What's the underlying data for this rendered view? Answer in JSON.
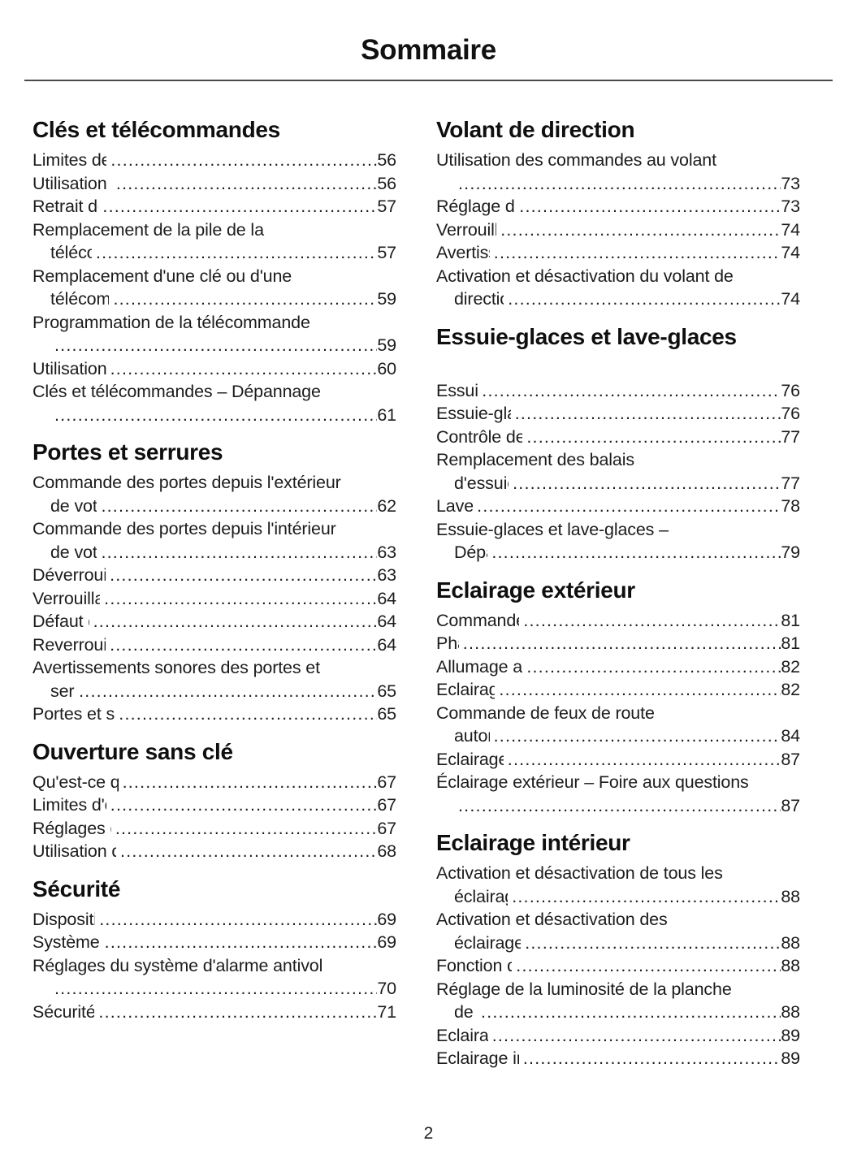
{
  "page": {
    "title": "Sommaire",
    "page_number": "2"
  },
  "columns": [
    {
      "sections": [
        {
          "title": "Clés et télécommandes",
          "entries": [
            {
              "lines": [
                "Limites de la télécommande"
              ],
              "page": "56"
            },
            {
              "lines": [
                "Utilisation de la télécommande"
              ],
              "page": "56"
            },
            {
              "lines": [
                "Retrait de la lame de clé"
              ],
              "page": "57"
            },
            {
              "lines": [
                "Remplacement de la pile de la",
                "télécommande"
              ],
              "page": "57"
            },
            {
              "lines": [
                "Remplacement d'une clé ou d'une",
                "télécommande perdue"
              ],
              "page": "59"
            },
            {
              "lines": [
                "Programmation de la télécommande",
                ""
              ],
              "page": "59"
            },
            {
              "lines": [
                "Utilisation du mode voiturier"
              ],
              "page": "60"
            },
            {
              "lines": [
                "Clés et télécommandes – Dépannage",
                ""
              ],
              "page": "61"
            }
          ]
        },
        {
          "title": "Portes et serrures",
          "entries": [
            {
              "lines": [
                "Commande des portes depuis l'extérieur",
                "de votre véhicule"
              ],
              "page": "62"
            },
            {
              "lines": [
                "Commande des portes depuis l'intérieur",
                "de votre véhicule"
              ],
              "page": "63"
            },
            {
              "lines": [
                "Déverrouillage automatique"
              ],
              "page": "63"
            },
            {
              "lines": [
                "Verrouillage automatique"
              ],
              "page": "64"
            },
            {
              "lines": [
                "Défaut de fermeture"
              ],
              "page": "64"
            },
            {
              "lines": [
                "Reverrouillage automatique"
              ],
              "page": "64"
            },
            {
              "lines": [
                "Avertissements sonores des portes et",
                "serrures"
              ],
              "page": "65"
            },
            {
              "lines": [
                "Portes et serrures – Dépannage"
              ],
              "page": "65"
            }
          ]
        },
        {
          "title": "Ouverture sans clé",
          "entries": [
            {
              "lines": [
                "Qu'est-ce que l'ouverture sans clé"
              ],
              "page": "67"
            },
            {
              "lines": [
                "Limites d'ouverture sans clé"
              ],
              "page": "67"
            },
            {
              "lines": [
                "Réglages d'ouverture sans clé"
              ],
              "page": "67"
            },
            {
              "lines": [
                "Utilisation de l'ouverture sans clé"
              ],
              "page": "68"
            }
          ]
        },
        {
          "title": "Sécurité",
          "entries": [
            {
              "lines": [
                "Dispositif antivol passif"
              ],
              "page": "69"
            },
            {
              "lines": [
                "Système d'alarme antivol"
              ],
              "page": "69"
            },
            {
              "lines": [
                "Réglages du système d'alarme antivol",
                ""
              ],
              "page": "70"
            },
            {
              "lines": [
                "Sécurité – Dépannage"
              ],
              "page": "71"
            }
          ]
        }
      ]
    },
    {
      "sections": [
        {
          "title": "Volant de direction",
          "entries": [
            {
              "lines": [
                "Utilisation des commandes au volant",
                ""
              ],
              "page": "73"
            },
            {
              "lines": [
                "Réglage du volant de direction"
              ],
              "page": "73"
            },
            {
              "lines": [
                "Verrouillage du volant"
              ],
              "page": "74"
            },
            {
              "lines": [
                "Avertisseur sonore"
              ],
              "page": "74"
            },
            {
              "lines": [
                "Activation et désactivation du volant de",
                "direction chauffant"
              ],
              "page": "74"
            }
          ]
        },
        {
          "title": "Essuie-glaces et lave-glaces",
          "extra_gap": true,
          "entries": [
            {
              "lines": [
                "Essuie-glaces"
              ],
              "page": "76"
            },
            {
              "lines": [
                "Essuie-glaces automatiques"
              ],
              "page": "76"
            },
            {
              "lines": [
                "Contrôle des balais d'essuie-glace"
              ],
              "page": "77"
            },
            {
              "lines": [
                "Remplacement des balais",
                "d'essuie-glace avant"
              ],
              "page": "77"
            },
            {
              "lines": [
                "Lave-glaces"
              ],
              "page": "78"
            },
            {
              "lines": [
                "Essuie-glaces et lave-glaces –",
                "Dépannage"
              ],
              "page": "79"
            }
          ]
        },
        {
          "title": "Eclairage extérieur",
          "entries": [
            {
              "lines": [
                "Commande d'éclairage extérieur"
              ],
              "page": "81"
            },
            {
              "lines": [
                "Phares"
              ],
              "page": "81"
            },
            {
              "lines": [
                "Allumage automatique des phares"
              ],
              "page": "82"
            },
            {
              "lines": [
                "Eclairages extérieurs"
              ],
              "page": "82"
            },
            {
              "lines": [
                "Commande de feux de route",
                "automatique"
              ],
              "page": "84"
            },
            {
              "lines": [
                "Eclairage avant adaptatif"
              ],
              "page": "87"
            },
            {
              "lines": [
                "Éclairage extérieur – Foire aux questions",
                ""
              ],
              "page": "87"
            }
          ]
        },
        {
          "title": "Eclairage intérieur",
          "entries": [
            {
              "lines": [
                "Activation et désactivation de tous les",
                "éclairages intérieurs"
              ],
              "page": "88"
            },
            {
              "lines": [
                "Activation et désactivation des",
                "éclairages intérieurs avant"
              ],
              "page": "88"
            },
            {
              "lines": [
                "Fonction d'éclairage intérieur"
              ],
              "page": "88"
            },
            {
              "lines": [
                "Réglage de la luminosité de la planche",
                "de bord"
              ],
              "page": "88"
            },
            {
              "lines": [
                "Eclairage ambiant"
              ],
              "page": "89"
            },
            {
              "lines": [
                "Eclairage intérieur – Dépannage"
              ],
              "page": "89"
            }
          ]
        }
      ]
    }
  ]
}
